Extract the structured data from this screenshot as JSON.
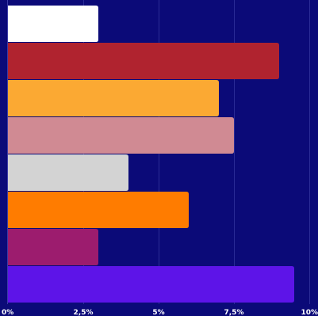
{
  "chart_data": {
    "type": "bar",
    "orientation": "horizontal",
    "title": "",
    "xlabel": "",
    "ylabel": "",
    "xlim": [
      0,
      10
    ],
    "x_ticks": [
      0,
      2.5,
      5,
      7.5,
      10
    ],
    "x_tick_labels": [
      "0%",
      "2,5%",
      "5%",
      "7,5%",
      "10%"
    ],
    "grid": "vertical",
    "legend": "none",
    "values": [
      3.0,
      9.0,
      7.0,
      7.5,
      4.0,
      6.0,
      3.0,
      9.5
    ],
    "unit": "%",
    "bar_colors": [
      "#ffffff",
      "#b0232f",
      "#fba933",
      "#d08a93",
      "#d3d3d3",
      "#ff7c00",
      "#9c1c6e",
      "#5d14e8"
    ],
    "background_color": "#0b0a78",
    "grid_color": "#2a2b96",
    "tick_label_color": "#ffffff"
  }
}
